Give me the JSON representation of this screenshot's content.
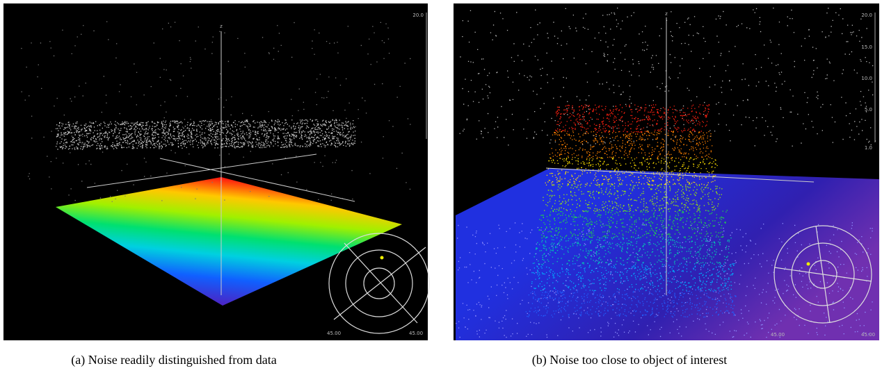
{
  "panels": [
    {
      "caption": "(a) Noise readily distinguished from data",
      "axis_label": "z",
      "scale_ticks": [
        "20.0"
      ],
      "corner_labels": [
        "45.00",
        "45.00"
      ]
    },
    {
      "caption": "(b) Noise too close to object of interest",
      "axis_label": "z",
      "scale_ticks": [
        "20.0",
        "15.0",
        "10.0",
        "5.0",
        "1.0"
      ],
      "corner_labels": [
        "45.00",
        "45.00"
      ]
    }
  ]
}
